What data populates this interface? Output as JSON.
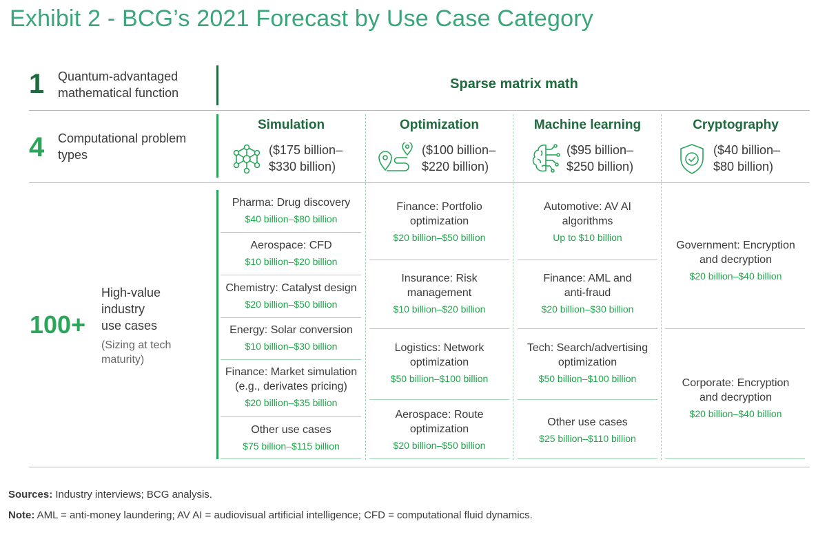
{
  "title": "Exhibit 2 - BCG’s 2021 Forecast by Use Case Category",
  "rows": {
    "function": {
      "number": "1",
      "label_line1": "Quantum-advantaged",
      "label_line2": "mathematical function"
    },
    "problems": {
      "number": "4",
      "label_line1": "Computational problem",
      "label_line2": "types"
    },
    "usecases": {
      "number": "100+",
      "label_line1": "High-value",
      "label_line2": "industry",
      "label_line3": "use cases",
      "note_line1": "(Sizing at tech",
      "note_line2": "maturity)"
    }
  },
  "function_name": "Sparse matrix math",
  "columns": [
    {
      "name": "Simulation",
      "range_line1": "($175 billion–",
      "range_line2": "$330 billion)",
      "icon": "molecule-network-icon"
    },
    {
      "name": "Optimization",
      "range_line1": "($100 billion–",
      "range_line2": "$220 billion)",
      "icon": "route-pins-icon"
    },
    {
      "name": "Machine learning",
      "range_line1": "($95 billion–",
      "range_line2": "$250 billion)",
      "icon": "brain-circuit-icon"
    },
    {
      "name": "Cryptography",
      "range_line1": "($40 billion–",
      "range_line2": "$80 billion)",
      "icon": "shield-check-icon"
    }
  ],
  "use_cases": {
    "simulation": [
      {
        "name1": "Pharma: Drug discovery",
        "name2": "",
        "value": "$40 billion–$80 billion"
      },
      {
        "name1": "Aerospace: CFD",
        "name2": "",
        "value": "$10 billion–$20 billion"
      },
      {
        "name1": "Chemistry: Catalyst design",
        "name2": "",
        "value": "$20 billion–$50 billion"
      },
      {
        "name1": "Energy: Solar conversion",
        "name2": "",
        "value": "$10 billion–$30 billion"
      },
      {
        "name1": "Finance: Market simulation",
        "name2": "(e.g., derivates pricing)",
        "value": "$20 billion–$35 billion"
      },
      {
        "name1": "Other use cases",
        "name2": "",
        "value": "$75 billion–$115 billion"
      }
    ],
    "optimization": [
      {
        "name1": "Finance: Portfolio",
        "name2": "optimization",
        "value": "$20 billion–$50 billion"
      },
      {
        "name1": "Insurance: Risk",
        "name2": "management",
        "value": "$10 billion–$20 billion"
      },
      {
        "name1": "Logistics: Network",
        "name2": "optimization",
        "value": "$50 billion–$100 billion"
      },
      {
        "name1": "Aerospace: Route",
        "name2": "optimization",
        "value": "$20 billion–$50 billion"
      }
    ],
    "machine_learning": [
      {
        "name1": "Automotive: AV AI",
        "name2": "algorithms",
        "value": "Up to $10 billion"
      },
      {
        "name1": "Finance: AML and",
        "name2": "anti-fraud",
        "value": "$20 billion–$30 billion"
      },
      {
        "name1": "Tech: Search/advertising",
        "name2": "optimization",
        "value": "$50 billion–$100 billion"
      },
      {
        "name1": "Other use cases",
        "name2": "",
        "value": "$25 billion–$110 billion"
      }
    ],
    "cryptography": [
      {
        "name1": "Government: Encryption",
        "name2": "and decryption",
        "value": "$20 billion–$40 billion"
      },
      {
        "name1": "Corporate: Encryption",
        "name2": "and decryption",
        "value": "$20 billion–$40 billion"
      }
    ]
  },
  "footer": {
    "sources_label": "Sources:",
    "sources_text": " Industry interviews; BCG analysis.",
    "note_label": "Note:",
    "note_text": " AML = anti-money laundering; AV AI = audiovisual artificial intelligence; CFD = computational fluid dynamics."
  },
  "colors": {
    "title": "#3aa57a",
    "dark_green": "#1f6b3e",
    "bright_green": "#2aa55a",
    "value_green": "#1fa84a"
  }
}
